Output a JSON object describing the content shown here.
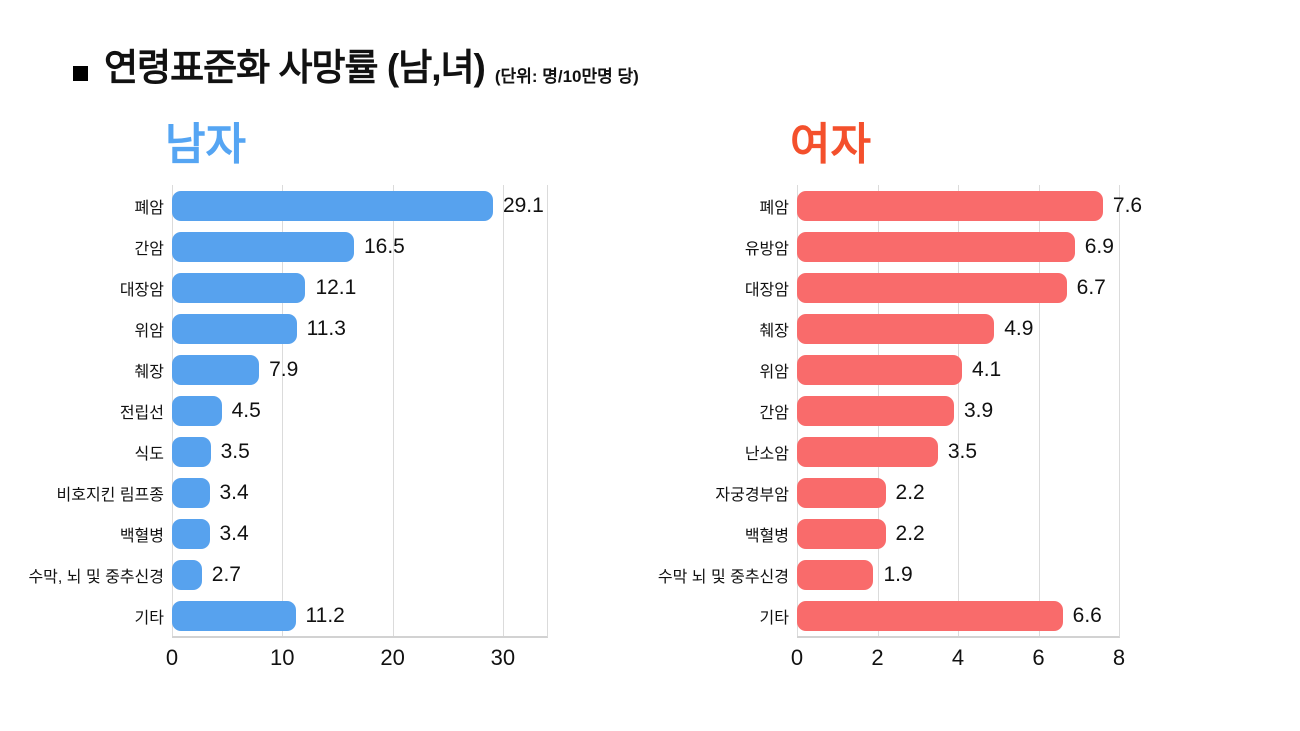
{
  "header": {
    "title": "연령표준화 사망률 (남,녀)",
    "unit_note": "(단위: 명/10만명 당)"
  },
  "chart_data": [
    {
      "type": "bar",
      "orientation": "horizontal",
      "title": "남자",
      "title_color": "#55A5F3",
      "bar_color": "#57A2EE",
      "categories": [
        "폐암",
        "간암",
        "대장암",
        "위암",
        "췌장",
        "전립선",
        "식도",
        "비호지킨 림프종",
        "백혈병",
        "수막, 뇌 및 중추신경",
        "기타"
      ],
      "values": [
        29.1,
        16.5,
        12.1,
        11.3,
        7.9,
        4.5,
        3.5,
        3.4,
        3.4,
        2.7,
        11.2
      ],
      "xlim": [
        0,
        34
      ],
      "xticks": [
        0,
        10,
        20,
        30
      ],
      "grid": true,
      "legend": "none"
    },
    {
      "type": "bar",
      "orientation": "horizontal",
      "title": "여자",
      "title_color": "#F4502C",
      "bar_color": "#F96B6B",
      "categories": [
        "폐암",
        "유방암",
        "대장암",
        "췌장",
        "위암",
        "간암",
        "난소암",
        "자궁경부암",
        "백혈병",
        "수막 뇌 및 중추신경",
        "기타"
      ],
      "values": [
        7.6,
        6.9,
        6.7,
        4.9,
        4.1,
        3.9,
        3.5,
        2.2,
        2.2,
        1.9,
        6.6
      ],
      "xlim": [
        0,
        8
      ],
      "xticks": [
        0,
        2,
        4,
        6,
        8
      ],
      "grid": true,
      "legend": "none"
    }
  ]
}
